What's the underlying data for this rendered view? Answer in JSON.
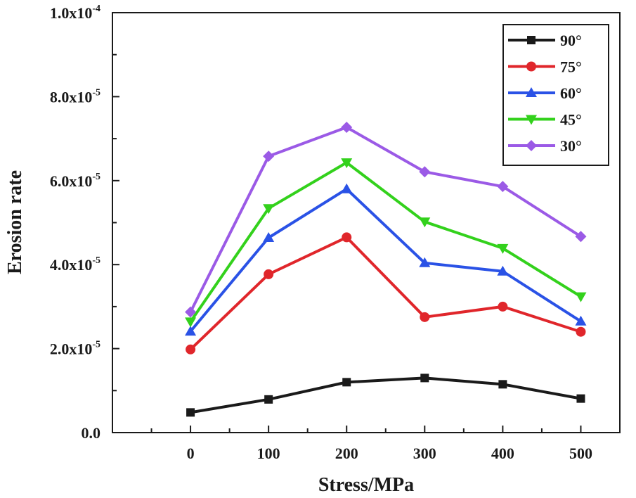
{
  "chart_data": {
    "type": "line",
    "xlabel": "Stress/MPa",
    "ylabel": "Erosion rate",
    "x": [
      0,
      100,
      200,
      300,
      400,
      500
    ],
    "x_tick_labels": [
      "0",
      "100",
      "200",
      "300",
      "400",
      "500"
    ],
    "xlim": [
      -100,
      550
    ],
    "ylim": [
      0,
      0.0001
    ],
    "y_ticks": [
      {
        "value": 0,
        "mantissa": "0.0",
        "exponent": ""
      },
      {
        "value": 2e-05,
        "mantissa": "2.0x10",
        "exponent": "-5"
      },
      {
        "value": 4e-05,
        "mantissa": "4.0x10",
        "exponent": "-5"
      },
      {
        "value": 6e-05,
        "mantissa": "6.0x10",
        "exponent": "-5"
      },
      {
        "value": 8e-05,
        "mantissa": "8.0x10",
        "exponent": "-5"
      },
      {
        "value": 0.0001,
        "mantissa": "1.0x10",
        "exponent": "-4"
      }
    ],
    "legend_position": "top-right",
    "series": [
      {
        "name": "90°",
        "color": "#1a1a1a",
        "marker": "square",
        "values": [
          4.8e-06,
          7.9e-06,
          1.2e-05,
          1.3e-05,
          1.15e-05,
          8.1e-06
        ]
      },
      {
        "name": "75°",
        "color": "#e0262b",
        "marker": "circle",
        "values": [
          1.98e-05,
          3.77e-05,
          4.65e-05,
          2.75e-05,
          3e-05,
          2.4e-05
        ]
      },
      {
        "name": "60°",
        "color": "#2a52e6",
        "marker": "triangle-up",
        "values": [
          2.41e-05,
          4.64e-05,
          5.8e-05,
          4.04e-05,
          3.84e-05,
          2.65e-05
        ]
      },
      {
        "name": "45°",
        "color": "#33d11c",
        "marker": "triangle-down",
        "values": [
          2.64e-05,
          5.34e-05,
          6.43e-05,
          5.02e-05,
          4.39e-05,
          3.24e-05
        ]
      },
      {
        "name": "30°",
        "color": "#9b5ae6",
        "marker": "diamond",
        "values": [
          2.87e-05,
          6.58e-05,
          7.27e-05,
          6.21e-05,
          5.86e-05,
          4.67e-05
        ]
      }
    ]
  }
}
